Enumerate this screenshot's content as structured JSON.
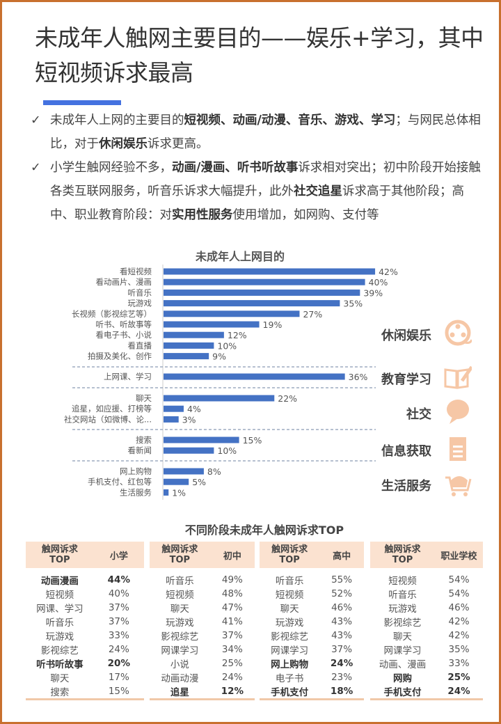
{
  "title": "未成年人触网主要目的——娱乐+学习，其中短视频诉求最高",
  "bullets": [
    {
      "segments": [
        {
          "t": "未成年人上网的主要目的",
          "b": false
        },
        {
          "t": "短视频、动画/动漫、音乐、游戏、学习",
          "b": true
        },
        {
          "t": "；与网民总体相比，对于",
          "b": false
        },
        {
          "t": "休闲娱乐",
          "b": true
        },
        {
          "t": "诉求更高。",
          "b": false
        }
      ]
    },
    {
      "segments": [
        {
          "t": "小学生触网经验不多，",
          "b": false
        },
        {
          "t": "动画/漫画、听书听故事",
          "b": true
        },
        {
          "t": "诉求相对突出；初中阶段开始接触各类互联网服务，听音乐诉求大幅提升，此外",
          "b": false
        },
        {
          "t": "社交追星",
          "b": true
        },
        {
          "t": "诉求高于其他阶段；高中、职业教育阶段：对",
          "b": false
        },
        {
          "t": "实用性服务",
          "b": true
        },
        {
          "t": "使用增加，如网购、支付等",
          "b": false
        }
      ]
    }
  ],
  "check_icon": "✓",
  "chart_data": {
    "type": "bar",
    "orientation": "horizontal",
    "title": "未成年人上网目的",
    "unit": "%",
    "bar_color": "#4472c4",
    "groups": [
      {
        "name": "休闲娱乐",
        "icon": "film-reel-icon",
        "items": [
          [
            "看短视频",
            42
          ],
          [
            "看动画片、漫画",
            40
          ],
          [
            "听音乐",
            39
          ],
          [
            "玩游戏",
            35
          ],
          [
            "长视频（影视综艺等）",
            27
          ],
          [
            "听书、听故事等",
            19
          ],
          [
            "看电子书、小说",
            12
          ],
          [
            "看直播",
            10
          ],
          [
            "拍摄及美化、创作",
            9
          ]
        ]
      },
      {
        "name": "教育学习",
        "icon": "book-pen-icon",
        "items": [
          [
            "上网课、学习",
            36
          ]
        ]
      },
      {
        "name": "社交",
        "icon": "speech-bubble-icon",
        "items": [
          [
            "聊天",
            22
          ],
          [
            "追星，如应援、打榜等",
            4
          ],
          [
            "社交网站（如微博、论...",
            3
          ]
        ]
      },
      {
        "name": "信息获取",
        "icon": "notepad-icon",
        "items": [
          [
            "搜索",
            15
          ],
          [
            "看新闻",
            10
          ]
        ]
      },
      {
        "name": "生活服务",
        "icon": "shopping-cart-icon",
        "items": [
          [
            "网上购物",
            8
          ],
          [
            "手机支付、红包等",
            5
          ],
          [
            "生活服务",
            1
          ]
        ]
      }
    ]
  },
  "icon_color": "#f6c7a6",
  "tables_title": "不同阶段未成年人触网诉求TOP",
  "tables": [
    {
      "h1": "触网诉求\nTOP",
      "h2": "小学",
      "rows": [
        [
          "动画漫画",
          "44%",
          true
        ],
        [
          "短视频",
          "40%",
          false
        ],
        [
          "网课、学习",
          "37%",
          false
        ],
        [
          "听音乐",
          "37%",
          false
        ],
        [
          "玩游戏",
          "33%",
          false
        ],
        [
          "影视综艺",
          "24%",
          false
        ],
        [
          "听书听故事",
          "20%",
          true
        ],
        [
          "聊天",
          "17%",
          false
        ],
        [
          "搜索",
          "15%",
          false
        ]
      ]
    },
    {
      "h1": "触网诉求\nTOP",
      "h2": "初中",
      "rows": [
        [
          "听音乐",
          "49%",
          false
        ],
        [
          "短视频",
          "48%",
          false
        ],
        [
          "聊天",
          "47%",
          false
        ],
        [
          "玩游戏",
          "41%",
          false
        ],
        [
          "影视综艺",
          "37%",
          false
        ],
        [
          "网课学习",
          "34%",
          false
        ],
        [
          "小说",
          "25%",
          false
        ],
        [
          "动画动漫",
          "24%",
          false
        ],
        [
          "追星",
          "12%",
          true
        ]
      ]
    },
    {
      "h1": "触网诉求\nTOP",
      "h2": "高中",
      "rows": [
        [
          "听音乐",
          "55%",
          false
        ],
        [
          "短视频",
          "52%",
          false
        ],
        [
          "聊天",
          "46%",
          false
        ],
        [
          "玩游戏",
          "43%",
          false
        ],
        [
          "影视综艺",
          "43%",
          false
        ],
        [
          "网课学习",
          "37%",
          false
        ],
        [
          "网上购物",
          "24%",
          true
        ],
        [
          "电子书",
          "23%",
          false
        ],
        [
          "手机支付",
          "18%",
          true
        ]
      ]
    },
    {
      "h1": "触网诉求\nTOP",
      "h2": "职业学校",
      "rows": [
        [
          "短视频",
          "54%",
          false
        ],
        [
          "听音乐",
          "54%",
          false
        ],
        [
          "玩游戏",
          "46%",
          false
        ],
        [
          "影视综艺",
          "42%",
          false
        ],
        [
          "聊天",
          "42%",
          false
        ],
        [
          "网课学习",
          "35%",
          false
        ],
        [
          "动画、漫画",
          "33%",
          false
        ],
        [
          "网购",
          "25%",
          true
        ],
        [
          "手机支付",
          "24%",
          true
        ]
      ]
    }
  ]
}
